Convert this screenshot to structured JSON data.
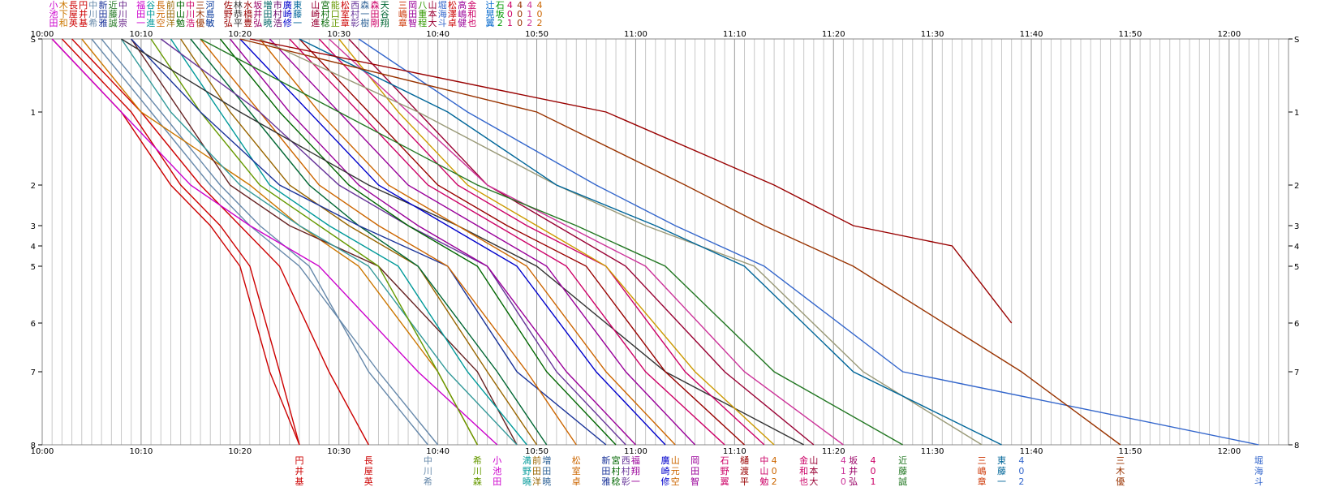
{
  "chart_data": {
    "type": "line",
    "title": "",
    "xlabel": "",
    "ylabel": "",
    "x_ticks": [
      "10:00",
      "10:10",
      "10:20",
      "10:30",
      "10:40",
      "10:50",
      "11:00",
      "11:10",
      "11:20",
      "11:30",
      "11:40",
      "11:50",
      "12:00"
    ],
    "xlim": [
      "10:00",
      "12:06"
    ],
    "y_stations": [
      "S",
      "1",
      "2",
      "3",
      "4",
      "5",
      "6",
      "7",
      "8"
    ],
    "grid": "minor-1min",
    "legend_placement": "top",
    "legend_columns": [
      {
        "chars": "小池田",
        "color": "#cc00cc"
      },
      {
        "chars": "木下和",
        "color": "#cc7700"
      },
      {
        "chars": "長屋英",
        "color": "#cc0000"
      },
      {
        "chars": "円井基",
        "color": "#cc0000"
      },
      {
        "chars": "中川希",
        "color": "#6688aa"
      },
      {
        "chars": "新田雅",
        "color": "#1a3399"
      },
      {
        "chars": "近藤誠",
        "color": "#227722"
      },
      {
        "chars": "中川崇",
        "color": "#662288"
      },
      {
        "chars": "福田一",
        "color": "#cc00cc"
      },
      {
        "chars": "谷中進",
        "color": "#009999"
      },
      {
        "chars": "長元空",
        "color": "#cc6600"
      },
      {
        "chars": "前田洋",
        "color": "#996600"
      },
      {
        "chars": "中山勉",
        "color": "#006600"
      },
      {
        "chars": "中川浩",
        "color": "#cc0066"
      },
      {
        "chars": "三木優",
        "color": "#993300"
      },
      {
        "chars": "河島敏",
        "color": "#003399"
      },
      {
        "chars": "佐野弘",
        "color": "#990000"
      },
      {
        "chars": "林恭平",
        "color": "#333333"
      },
      {
        "chars": "水橋豊",
        "color": "#990000"
      },
      {
        "chars": "坂井弘",
        "color": "#990066"
      },
      {
        "chars": "増田暁",
        "color": "#006666"
      },
      {
        "chars": "市村浩",
        "color": "#660066"
      },
      {
        "chars": "廣崎修",
        "color": "#0000cc"
      },
      {
        "chars": "東藤一",
        "color": "#006699"
      },
      {
        "chars": "山崎進",
        "color": "#990033"
      },
      {
        "chars": "宮村稔",
        "color": "#006600"
      },
      {
        "chars": "能口正",
        "color": "#669900"
      },
      {
        "chars": "松室章",
        "color": "#cc0000"
      },
      {
        "chars": "西村彰",
        "color": "#663399"
      },
      {
        "chars": "森一樹",
        "color": "#336699"
      },
      {
        "chars": "森田剛",
        "color": "#cc0066"
      },
      {
        "chars": "天谷翔",
        "color": "#006633"
      },
      {
        "chars": "三嶋章",
        "color": "#cc3300"
      },
      {
        "chars": "岡田智",
        "color": "#990099"
      },
      {
        "chars": "八重程",
        "color": "#339900"
      },
      {
        "chars": "山本大",
        "color": "#990033"
      },
      {
        "chars": "堀海斗",
        "color": "#3366cc"
      },
      {
        "chars": "松澤卓",
        "color": "#cc0000"
      },
      {
        "chars": "高嶋健",
        "color": "#990099"
      },
      {
        "chars": "金和也",
        "color": "#cc0066"
      },
      {
        "chars": "辻晃翼",
        "color": "#0066cc"
      },
      {
        "chars": "石坂2",
        "color": "#009900"
      },
      {
        "chars": "401",
        "color": "#cc0066"
      },
      {
        "chars": "400",
        "color": "#993300"
      },
      {
        "chars": "412",
        "color": "#cc3399"
      },
      {
        "chars": "402",
        "color": "#cc6600"
      }
    ],
    "finish_labels": [
      {
        "chars": "円井基",
        "color": "#cc0000",
        "x": "10:26"
      },
      {
        "chars": "長屋英",
        "color": "#cc0000",
        "x": "10:33"
      },
      {
        "chars": "中川希",
        "color": "#6688aa",
        "x": "10:39"
      },
      {
        "chars": "希川森",
        "color": "#669900",
        "x": "10:44"
      },
      {
        "chars": "小池田",
        "color": "#cc00cc",
        "x": "10:46"
      },
      {
        "chars": "満野曉",
        "color": "#009999",
        "x": "10:49"
      },
      {
        "chars": "前田洋",
        "color": "#996600",
        "x": "10:50"
      },
      {
        "chars": "増田暁",
        "color": "#336699",
        "x": "10:51"
      },
      {
        "chars": "松室卓",
        "color": "#cc6600",
        "x": "10:54"
      },
      {
        "chars": "新田雅",
        "color": "#1a3399",
        "x": "10:57"
      },
      {
        "chars": "宮村稔",
        "color": "#006600",
        "x": "10:58"
      },
      {
        "chars": "西村彰",
        "color": "#663399",
        "x": "10:59"
      },
      {
        "chars": "福翔一",
        "color": "#990099",
        "x": "11:00"
      },
      {
        "chars": "廣崎修",
        "color": "#0000cc",
        "x": "11:03"
      },
      {
        "chars": "山元空",
        "color": "#cc6600",
        "x": "11:04"
      },
      {
        "chars": "岡田智",
        "color": "#990099",
        "x": "11:06"
      },
      {
        "chars": "石野翼",
        "color": "#cc0066",
        "x": "11:09"
      },
      {
        "chars": "樋渡平",
        "color": "#990000",
        "x": "11:11"
      },
      {
        "chars": "中山勉",
        "color": "#cc0066",
        "x": "11:13"
      },
      {
        "chars": "402",
        "color": "#cc6600",
        "x": "11:14"
      },
      {
        "chars": "金和也",
        "color": "#cc0066",
        "x": "11:17"
      },
      {
        "chars": "山本大",
        "color": "#990033",
        "x": "11:18"
      },
      {
        "chars": "410",
        "color": "#cc3399",
        "x": "11:21"
      },
      {
        "chars": "坂井弘",
        "color": "#990066",
        "x": "11:22"
      },
      {
        "chars": "401",
        "color": "#cc0066",
        "x": "11:24"
      },
      {
        "chars": "近藤誠",
        "color": "#227722",
        "x": "11:27"
      },
      {
        "chars": "三嶋章",
        "color": "#cc3300",
        "x": "11:35"
      },
      {
        "chars": "東藤一",
        "color": "#006699",
        "x": "11:37"
      },
      {
        "chars": "402",
        "color": "#3366cc",
        "x": "11:39"
      },
      {
        "chars": "三木優",
        "color": "#993300",
        "x": "11:49"
      },
      {
        "chars": "堀海斗",
        "color": "#3366cc",
        "x": "12:03"
      }
    ],
    "series": [
      {
        "color": "#cc0000",
        "x": [
          "10:03",
          "10:10",
          "10:16",
          "10:20",
          "10:24",
          "10:29",
          "10:33"
        ],
        "y": [
          0,
          1,
          2,
          3,
          5,
          7,
          8
        ]
      },
      {
        "color": "#cc0000",
        "x": [
          "10:02",
          "10:09",
          "10:14",
          "10:18",
          "10:21",
          "10:24",
          "10:26"
        ],
        "y": [
          0,
          1,
          2,
          3,
          5,
          7,
          8
        ]
      },
      {
        "color": "#6688aa",
        "x": [
          "10:05",
          "10:11",
          "10:17",
          "10:21",
          "10:26",
          "10:34",
          "10:40"
        ],
        "y": [
          0,
          1,
          2,
          3,
          5,
          7,
          8
        ]
      },
      {
        "color": "#cc0000",
        "x": [
          "10:01",
          "10:08",
          "10:13",
          "10:17",
          "10:20",
          "10:23",
          "10:26"
        ],
        "y": [
          0,
          1,
          2,
          3,
          5,
          7,
          8
        ]
      },
      {
        "color": "#6688aa",
        "x": [
          "10:06",
          "10:12",
          "10:18",
          "10:22",
          "10:27",
          "10:33",
          "10:39"
        ],
        "y": [
          0,
          1,
          2,
          3,
          5,
          7,
          8
        ]
      },
      {
        "color": "#cc7700",
        "x": [
          "10:04",
          "10:10",
          "10:21",
          "10:26",
          "10:32",
          "10:40",
          "10:44"
        ],
        "y": [
          0,
          1,
          2,
          3,
          5,
          7,
          8
        ]
      },
      {
        "color": "#662222",
        "x": [
          "10:09",
          "10:14",
          "10:19",
          "10:25",
          "10:34",
          "10:44",
          "10:48"
        ],
        "y": [
          0,
          1,
          2,
          3,
          5,
          7,
          8
        ]
      },
      {
        "color": "#339999",
        "x": [
          "10:08",
          "10:13",
          "10:20",
          "10:26",
          "10:33",
          "10:41",
          "10:48"
        ],
        "y": [
          0,
          1,
          2,
          3,
          5,
          7,
          8
        ]
      },
      {
        "color": "#cc00cc",
        "x": [
          "10:01",
          "10:08",
          "10:15",
          "10:21",
          "10:28",
          "10:38",
          "10:46"
        ],
        "y": [
          0,
          1,
          2,
          3,
          5,
          7,
          8
        ]
      },
      {
        "color": "#669900",
        "x": [
          "10:11",
          "10:16",
          "10:22",
          "10:28",
          "10:34",
          "10:40",
          "10:44"
        ],
        "y": [
          0,
          1,
          2,
          3,
          5,
          7,
          8
        ]
      },
      {
        "color": "#009999",
        "x": [
          "10:13",
          "10:18",
          "10:23",
          "10:29",
          "10:36",
          "10:43",
          "10:49"
        ],
        "y": [
          0,
          1,
          2,
          3,
          5,
          7,
          8
        ]
      },
      {
        "color": "#996600",
        "x": [
          "10:14",
          "10:19",
          "10:25",
          "10:31",
          "10:38",
          "10:45",
          "10:50"
        ],
        "y": [
          0,
          1,
          2,
          3,
          5,
          7,
          8
        ]
      },
      {
        "color": "#006633",
        "x": [
          "10:15",
          "10:21",
          "10:27",
          "10:32",
          "10:38",
          "10:46",
          "10:51"
        ],
        "y": [
          0,
          1,
          2,
          3,
          5,
          7,
          8
        ]
      },
      {
        "color": "#1a3399",
        "x": [
          "10:09",
          "10:16",
          "10:24",
          "10:32",
          "10:41",
          "10:48",
          "10:57"
        ],
        "y": [
          0,
          1,
          2,
          3,
          5,
          7,
          8
        ]
      },
      {
        "color": "#cc6600",
        "x": [
          "10:16",
          "10:22",
          "10:28",
          "10:34",
          "10:41",
          "10:49",
          "10:54"
        ],
        "y": [
          0,
          1,
          2,
          3,
          5,
          7,
          8
        ]
      },
      {
        "color": "#663399",
        "x": [
          "10:12",
          "10:22",
          "10:30",
          "10:37",
          "10:45",
          "10:52",
          "10:59"
        ],
        "y": [
          0,
          1,
          2,
          3,
          5,
          7,
          8
        ]
      },
      {
        "color": "#006600",
        "x": [
          "10:18",
          "10:24",
          "10:31",
          "10:37",
          "10:44",
          "10:51",
          "10:58"
        ],
        "y": [
          0,
          1,
          2,
          3,
          5,
          7,
          8
        ]
      },
      {
        "color": "#990099",
        "x": [
          "10:19",
          "10:25",
          "10:32",
          "10:38",
          "10:45",
          "10:53",
          "11:00"
        ],
        "y": [
          0,
          1,
          2,
          3,
          5,
          7,
          8
        ]
      },
      {
        "color": "#333333",
        "x": [
          "10:08",
          "10:20",
          "10:33",
          "10:42",
          "10:50",
          "11:03",
          "11:17"
        ],
        "y": [
          0,
          1,
          2,
          3,
          5,
          7,
          8
        ]
      },
      {
        "color": "#0000cc",
        "x": [
          "10:20",
          "10:27",
          "10:34",
          "10:41",
          "10:48",
          "10:56",
          "11:03"
        ],
        "y": [
          0,
          1,
          2,
          3,
          5,
          7,
          8
        ]
      },
      {
        "color": "#cc6600",
        "x": [
          "10:22",
          "10:28",
          "10:35",
          "10:42",
          "10:49",
          "10:57",
          "11:04"
        ],
        "y": [
          0,
          1,
          2,
          3,
          5,
          7,
          8
        ]
      },
      {
        "color": "#990099",
        "x": [
          "10:23",
          "10:30",
          "10:37",
          "10:44",
          "10:51",
          "10:59",
          "11:06"
        ],
        "y": [
          0,
          1,
          2,
          3,
          5,
          7,
          8
        ]
      },
      {
        "color": "#cc0066",
        "x": [
          "10:25",
          "10:32",
          "10:39",
          "10:46",
          "10:53",
          "11:01",
          "11:09"
        ],
        "y": [
          0,
          1,
          2,
          3,
          5,
          7,
          8
        ]
      },
      {
        "color": "#990000",
        "x": [
          "10:26",
          "10:33",
          "10:40",
          "10:47",
          "10:55",
          "11:03",
          "11:11"
        ],
        "y": [
          0,
          1,
          2,
          3,
          5,
          7,
          8
        ]
      },
      {
        "color": "#cc0066",
        "x": [
          "10:28",
          "10:35",
          "10:42",
          "10:49",
          "10:57",
          "11:05",
          "11:13"
        ],
        "y": [
          0,
          1,
          2,
          3,
          5,
          7,
          8
        ]
      },
      {
        "color": "#cc9900",
        "x": [
          "10:30",
          "10:36",
          "10:43",
          "10:50",
          "10:57",
          "11:06",
          "11:14"
        ],
        "y": [
          0,
          1,
          2,
          3,
          5,
          7,
          8
        ]
      },
      {
        "color": "#990033",
        "x": [
          "10:31",
          "10:38",
          "10:45",
          "10:52",
          "10:59",
          "11:09",
          "11:18"
        ],
        "y": [
          0,
          1,
          2,
          3,
          5,
          7,
          8
        ]
      },
      {
        "color": "#cc3399",
        "x": [
          "10:29",
          "10:37",
          "10:45",
          "10:53",
          "11:01",
          "11:11",
          "11:21"
        ],
        "y": [
          0,
          1,
          2,
          3,
          5,
          7,
          8
        ]
      },
      {
        "color": "#227722",
        "x": [
          "10:16",
          "10:30",
          "10:44",
          "10:54",
          "11:03",
          "11:14",
          "11:27"
        ],
        "y": [
          0,
          1,
          2,
          3,
          5,
          7,
          8
        ]
      },
      {
        "color": "#999977",
        "x": [
          "10:22",
          "10:38",
          "10:52",
          "11:01",
          "11:12",
          "11:23",
          "11:35"
        ],
        "y": [
          0,
          1,
          2,
          3,
          5,
          7,
          8
        ]
      },
      {
        "color": "#006699",
        "x": [
          "10:26",
          "10:41",
          "10:52",
          "11:02",
          "11:11",
          "11:22",
          "11:37"
        ],
        "y": [
          0,
          1,
          2,
          3,
          5,
          7,
          8
        ]
      },
      {
        "color": "#3366cc",
        "x": [
          "10:32",
          "10:43",
          "10:56",
          "11:04",
          "11:13",
          "11:27",
          "12:03"
        ],
        "y": [
          0,
          1,
          2,
          3,
          5,
          7,
          8
        ]
      },
      {
        "color": "#993300",
        "x": [
          "10:20",
          "10:50",
          "11:05",
          "11:13",
          "11:22",
          "11:39",
          "11:49"
        ],
        "y": [
          0,
          1,
          2,
          3,
          5,
          7,
          8
        ]
      },
      {
        "color": "#990000",
        "x": [
          "10:21",
          "10:57",
          "11:14",
          "11:22",
          "11:32",
          "11:38"
        ],
        "y": [
          0,
          1,
          2,
          3,
          4,
          6
        ]
      }
    ]
  }
}
